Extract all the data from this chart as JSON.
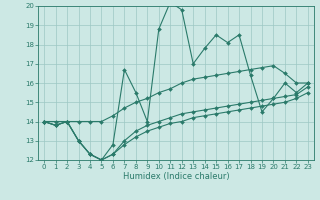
{
  "xlabel": "Humidex (Indice chaleur)",
  "x": [
    0,
    1,
    2,
    3,
    4,
    5,
    6,
    7,
    8,
    9,
    10,
    11,
    12,
    13,
    14,
    15,
    16,
    17,
    18,
    19,
    20,
    21,
    22,
    23
  ],
  "line_main": [
    14,
    13.8,
    14,
    13,
    12.3,
    12,
    12.8,
    16.7,
    15.5,
    14,
    18.8,
    20.2,
    19.8,
    17,
    17.8,
    18.5,
    18.1,
    18.5,
    16.4,
    14.5,
    15.2,
    16,
    15.5,
    16
  ],
  "line_upper": [
    14,
    14,
    14,
    14,
    14,
    14,
    14.3,
    14.7,
    15.0,
    15.2,
    15.5,
    15.7,
    16.0,
    16.2,
    16.3,
    16.4,
    16.5,
    16.6,
    16.7,
    16.8,
    16.9,
    16.5,
    16.0,
    16.0
  ],
  "line_lower": [
    14,
    13.8,
    14,
    13,
    12.3,
    12,
    12.3,
    12.8,
    13.2,
    13.5,
    13.7,
    13.9,
    14.0,
    14.2,
    14.3,
    14.4,
    14.5,
    14.6,
    14.7,
    14.8,
    14.9,
    15.0,
    15.2,
    15.5
  ],
  "line_mid": [
    14,
    13.8,
    14,
    13,
    12.3,
    12,
    12.3,
    13.0,
    13.5,
    13.8,
    14.0,
    14.2,
    14.4,
    14.5,
    14.6,
    14.7,
    14.8,
    14.9,
    15.0,
    15.1,
    15.2,
    15.3,
    15.4,
    15.8
  ],
  "color": "#2a7a6a",
  "bg_color": "#cce8e4",
  "grid_color": "#9dc8c4",
  "ylim": [
    12,
    20
  ],
  "xlim": [
    -0.5,
    23.5
  ],
  "yticks": [
    12,
    13,
    14,
    15,
    16,
    17,
    18,
    19,
    20
  ],
  "xticks": [
    0,
    1,
    2,
    3,
    4,
    5,
    6,
    7,
    8,
    9,
    10,
    11,
    12,
    13,
    14,
    15,
    16,
    17,
    18,
    19,
    20,
    21,
    22,
    23
  ],
  "xlabel_fontsize": 6,
  "tick_fontsize": 5,
  "linewidth": 0.8,
  "markersize": 2.0
}
